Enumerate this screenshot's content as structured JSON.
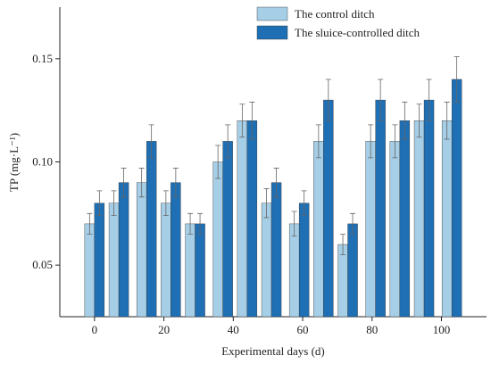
{
  "chart_data": {
    "type": "bar",
    "x": [
      0,
      7,
      15,
      22,
      29,
      37,
      44,
      51,
      59,
      66,
      73,
      81,
      88,
      95,
      103
    ],
    "series": [
      {
        "name": "The control ditch",
        "color": "#a6cee6",
        "values": [
          0.07,
          0.08,
          0.09,
          0.08,
          0.07,
          0.1,
          0.12,
          0.08,
          0.07,
          0.11,
          0.06,
          0.11,
          0.11,
          0.12,
          0.12
        ],
        "errors": [
          0.005,
          0.006,
          0.007,
          0.006,
          0.005,
          0.008,
          0.008,
          0.007,
          0.006,
          0.008,
          0.005,
          0.008,
          0.008,
          0.008,
          0.009
        ]
      },
      {
        "name": "The sluice-controlled ditch",
        "color": "#1f6fb4",
        "values": [
          0.08,
          0.09,
          0.11,
          0.09,
          0.07,
          0.11,
          0.12,
          0.09,
          0.08,
          0.13,
          0.07,
          0.13,
          0.12,
          0.13,
          0.14
        ],
        "errors": [
          0.006,
          0.007,
          0.008,
          0.007,
          0.005,
          0.008,
          0.009,
          0.007,
          0.006,
          0.01,
          0.005,
          0.01,
          0.009,
          0.01,
          0.011
        ]
      }
    ],
    "xlabel": "Experimental days (d)",
    "ylabel": "TP (mg·L⁻¹)",
    "xlim": [
      -10,
      113
    ],
    "xticks": [
      0,
      20,
      40,
      60,
      80,
      100
    ],
    "ylim": [
      0.025,
      0.175
    ],
    "yticks": [
      0.05,
      0.1,
      0.15
    ],
    "legend": "upper center"
  }
}
